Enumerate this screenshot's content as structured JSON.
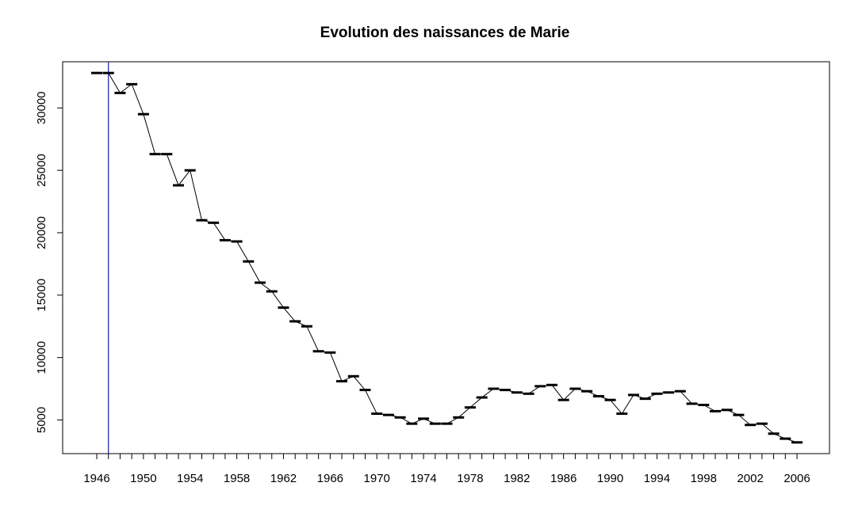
{
  "chart_data": {
    "type": "line",
    "title": "Evolution des naissances de Marie",
    "xlabel": "",
    "ylabel": "",
    "xlim": [
      1945,
      2008
    ],
    "ylim": [
      2300,
      33700
    ],
    "x_ticks": [
      1946,
      1950,
      1954,
      1958,
      1962,
      1966,
      1970,
      1974,
      1978,
      1982,
      1986,
      1990,
      1994,
      1998,
      2002,
      2006
    ],
    "y_ticks": [
      5000,
      10000,
      15000,
      20000,
      25000,
      30000
    ],
    "grid": false,
    "legend": "none",
    "reference_line": {
      "x": 1947,
      "color": "#1a1aa8"
    },
    "line_color": "#000000",
    "series": [
      {
        "x": [
          1946,
          1947,
          1948,
          1949,
          1950,
          1951,
          1952,
          1953,
          1954,
          1955,
          1956,
          1957,
          1958,
          1959,
          1960,
          1961,
          1962,
          1963,
          1964,
          1965,
          1966,
          1967,
          1968,
          1969,
          1970,
          1971,
          1972,
          1973,
          1974,
          1975,
          1976,
          1977,
          1978,
          1979,
          1980,
          1981,
          1982,
          1983,
          1984,
          1985,
          1986,
          1987,
          1988,
          1989,
          1990,
          1991,
          1992,
          1993,
          1994,
          1995,
          1996,
          1997,
          1998,
          1999,
          2000,
          2001,
          2002,
          2003,
          2004,
          2005,
          2006
        ],
        "values": [
          32800,
          32800,
          31200,
          31900,
          29500,
          26300,
          26300,
          23800,
          25000,
          21000,
          20800,
          19400,
          19300,
          17700,
          16000,
          15300,
          14000,
          12900,
          12500,
          10500,
          10400,
          8100,
          8500,
          7400,
          5500,
          5400,
          5200,
          4700,
          5100,
          4700,
          4700,
          5200,
          6000,
          6800,
          7500,
          7400,
          7200,
          7100,
          7700,
          7800,
          6600,
          7500,
          7300,
          6900,
          6600,
          5500,
          7000,
          6700,
          7100,
          7200,
          7300,
          6300,
          6200,
          5700,
          5800,
          5400,
          4600,
          4700,
          3900,
          3500,
          3200
        ]
      }
    ]
  }
}
